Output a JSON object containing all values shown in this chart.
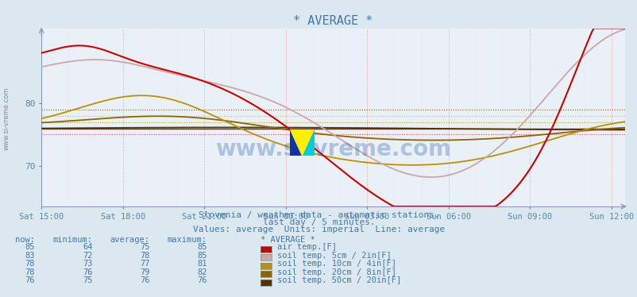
{
  "title": "* AVERAGE *",
  "subtitle1": "Slovenia / weather data - automatic stations.",
  "subtitle2": "last day / 5 minutes.",
  "subtitle3": "Values: average  Units: imperial  Line: average",
  "bg_color": "#dce8f0",
  "plot_bg_color": "#eaf0f8",
  "x_ticks_labels": [
    "Sat 15:00",
    "Sat 18:00",
    "Sat 21:00",
    "Sun 00:00",
    "Sun 03:00",
    "Sun 06:00",
    "Sun 09:00",
    "Sun 12:00"
  ],
  "x_ticks_pos": [
    0,
    3,
    6,
    9,
    12,
    15,
    18,
    21
  ],
  "ylim": [
    63.5,
    92
  ],
  "yticks": [
    70,
    80
  ],
  "air_temp_color": "#cc0000",
  "air_temp_avg_color": "#ff4444",
  "soil5_color": "#c8a8a8",
  "soil5_avg_color": "#c8a8a8",
  "soil10_color": "#b8900a",
  "soil10_avg_color": "#c8a00a",
  "soil20_color": "#8a6400",
  "soil20_avg_color": "#8a6400",
  "soil50_color": "#5a3000",
  "soil50_avg_color": "#5a3000",
  "legend_rows": [
    [
      85,
      64,
      75,
      85,
      "air temp.[F]",
      "#cc0000"
    ],
    [
      83,
      72,
      78,
      85,
      "soil temp. 5cm / 2in[F]",
      "#c8a8a8"
    ],
    [
      78,
      73,
      77,
      81,
      "soil temp. 10cm / 4in[F]",
      "#b8900a"
    ],
    [
      78,
      76,
      79,
      82,
      "soil temp. 20cm / 8in[F]",
      "#8a6400"
    ],
    [
      76,
      75,
      76,
      76,
      "soil temp. 50cm / 20in[F]",
      "#5a3000"
    ]
  ]
}
